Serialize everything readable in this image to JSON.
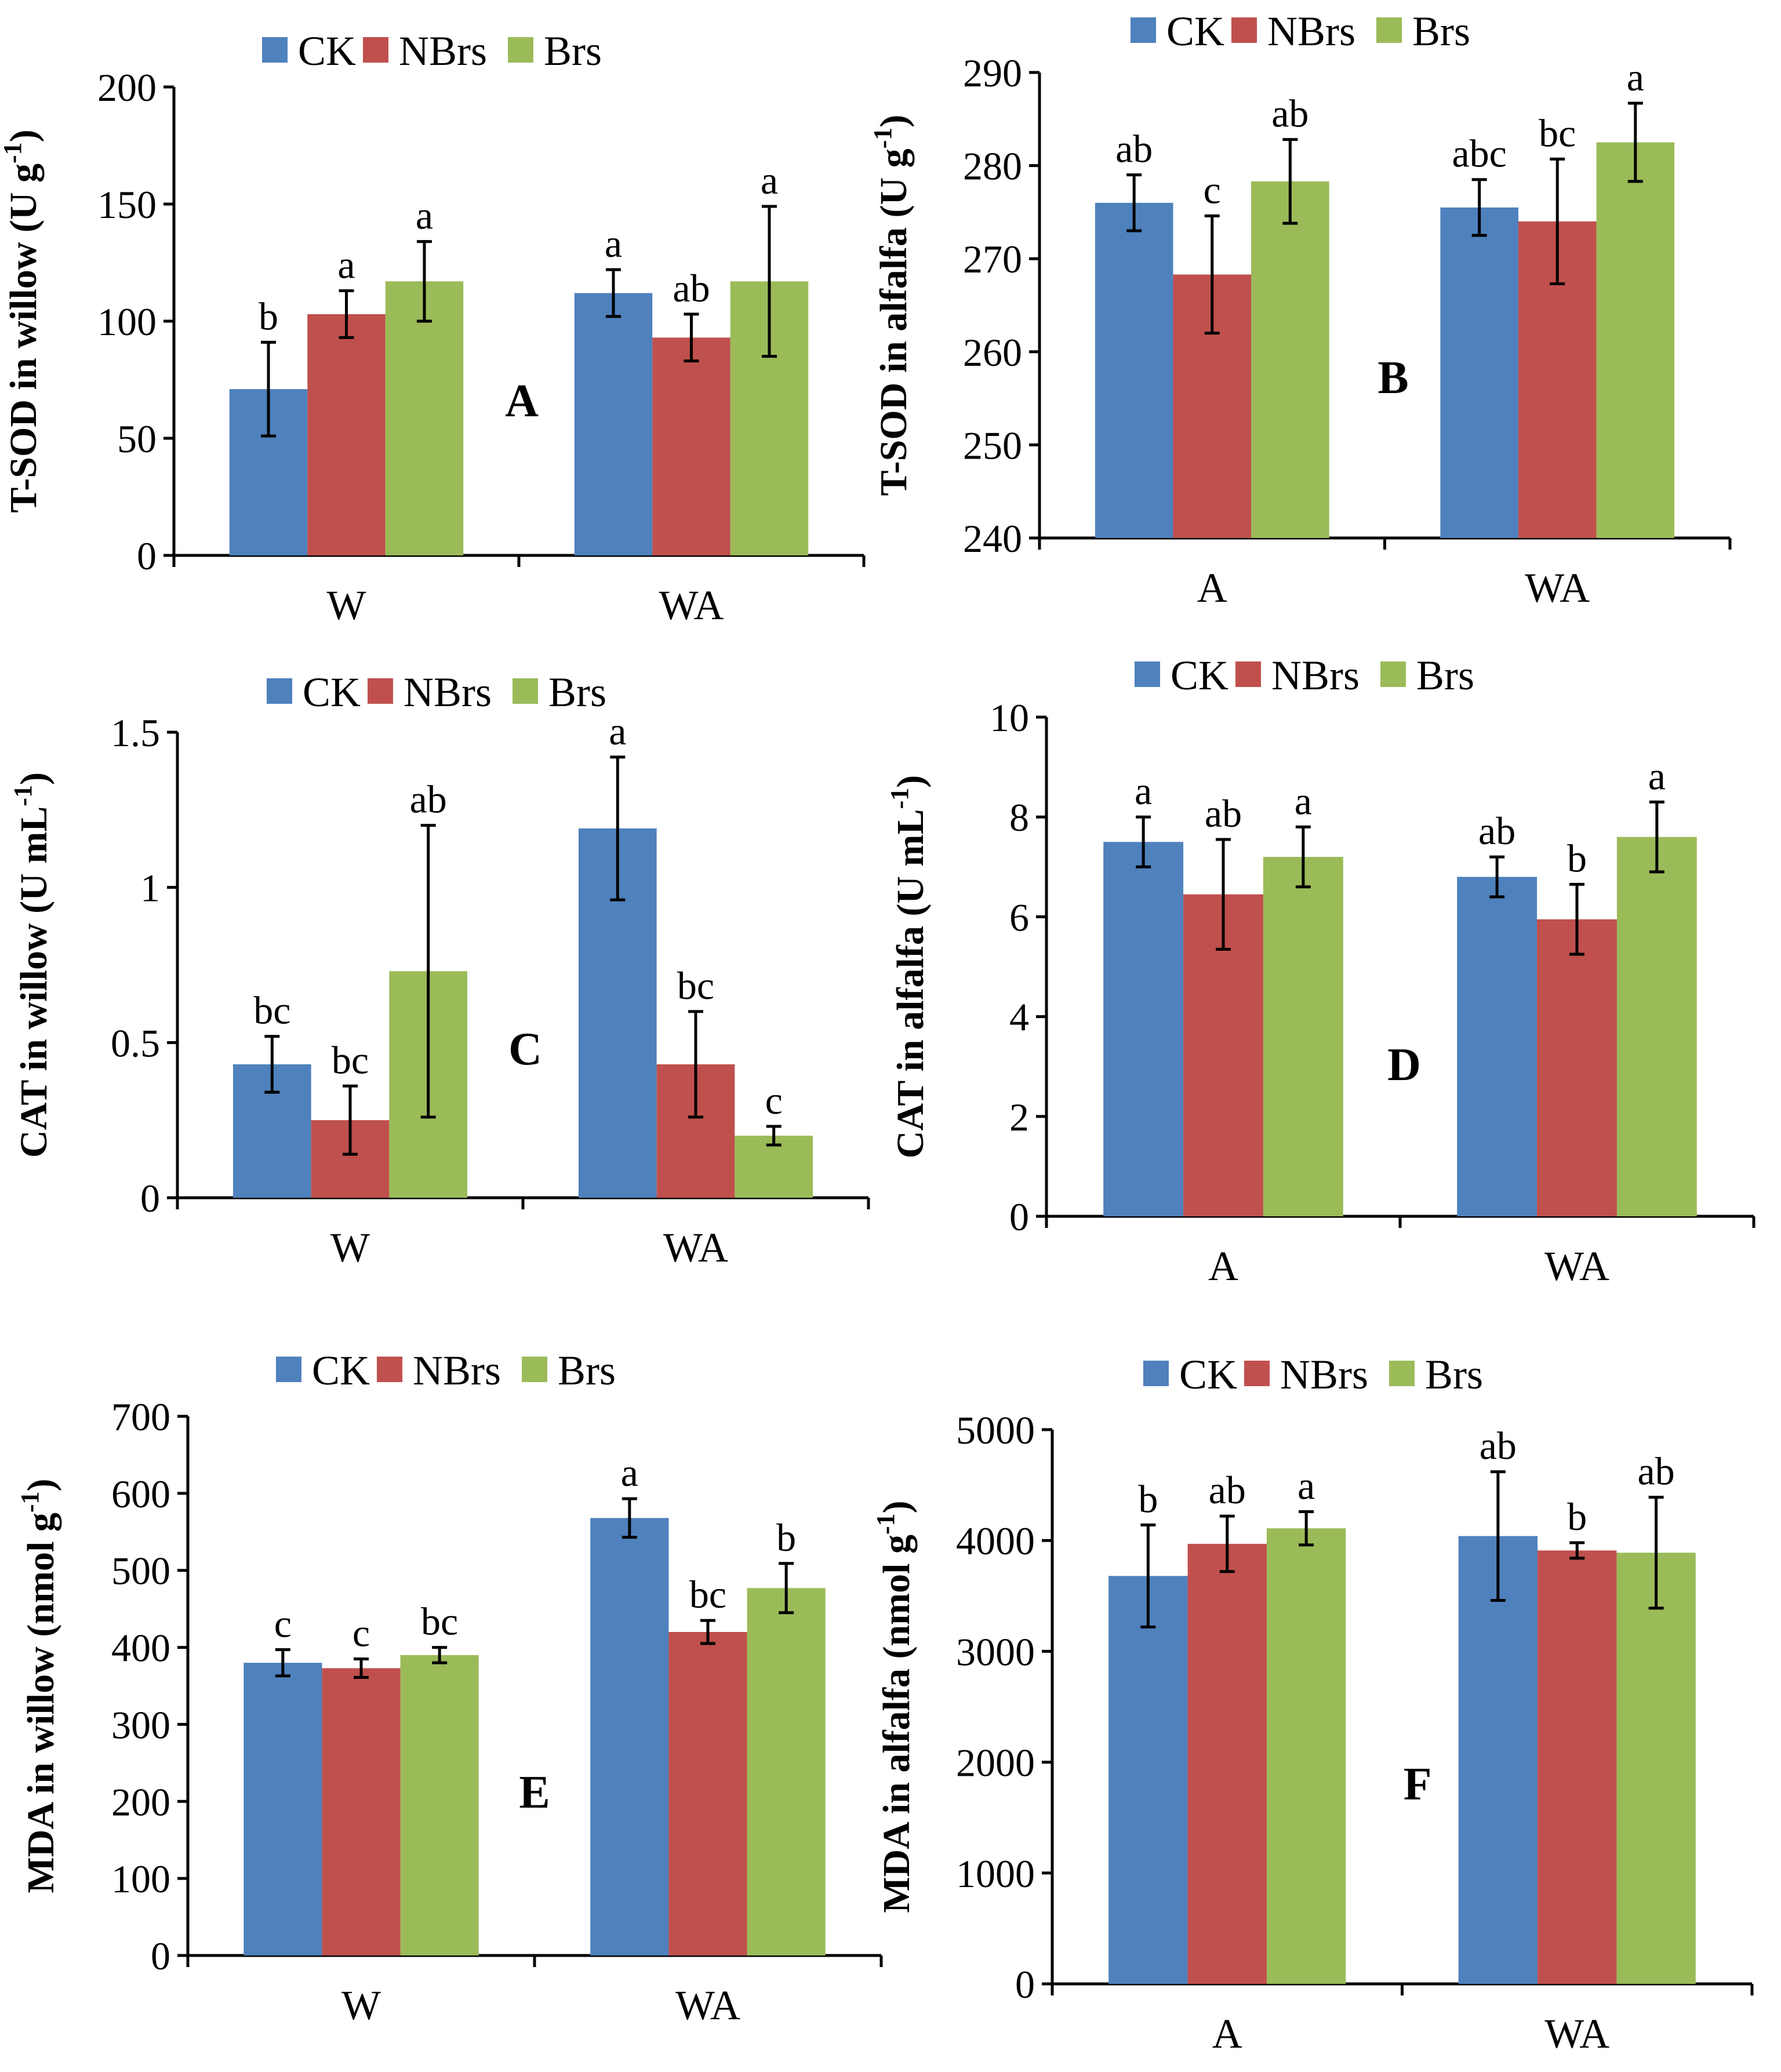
{
  "figure": {
    "legend": [
      "CK",
      "NBrs",
      "Brs"
    ],
    "colors": {
      "CK": "#4f81bd",
      "NBrs": "#c0504d",
      "Brs": "#9bbb59"
    }
  },
  "chart_data": [
    {
      "type": "bar",
      "panel": "A",
      "ylabel_main": "T-SOD in willow (U g",
      "ylabel_sup": "-1",
      "ylabel_end": ")",
      "ylim": [
        0,
        200
      ],
      "yticks": [
        0,
        50,
        100,
        150,
        200
      ],
      "categories": [
        "W",
        "WA"
      ],
      "series": [
        {
          "name": "CK",
          "values": [
            71,
            112
          ],
          "errors": [
            20,
            10
          ],
          "letters": [
            "b",
            "a"
          ]
        },
        {
          "name": "NBrs",
          "values": [
            103,
            93
          ],
          "errors": [
            10,
            10
          ],
          "letters": [
            "a",
            "ab"
          ]
        },
        {
          "name": "Brs",
          "values": [
            117,
            117
          ],
          "errors": [
            17,
            32
          ],
          "letters": [
            "a",
            "a"
          ]
        }
      ]
    },
    {
      "type": "bar",
      "panel": "B",
      "ylabel_main": "T-SOD in alfalfa (U g",
      "ylabel_sup": "-1",
      "ylabel_end": ")",
      "ylim": [
        240,
        290
      ],
      "yticks": [
        240,
        250,
        260,
        270,
        280,
        290
      ],
      "categories": [
        "A",
        "WA"
      ],
      "series": [
        {
          "name": "CK",
          "values": [
            276,
            275.5
          ],
          "errors": [
            3,
            3
          ],
          "letters": [
            "ab",
            "abc"
          ]
        },
        {
          "name": "NBrs",
          "values": [
            268.3,
            274
          ],
          "errors": [
            6.3,
            6.7
          ],
          "letters": [
            "c",
            "bc"
          ]
        },
        {
          "name": "Brs",
          "values": [
            278.3,
            282.5
          ],
          "errors": [
            4.5,
            4.2
          ],
          "letters": [
            "ab",
            "a"
          ]
        }
      ]
    },
    {
      "type": "bar",
      "panel": "C",
      "ylabel_main": "CAT in willow (U mL",
      "ylabel_sup": "-1",
      "ylabel_end": ")",
      "ylim": [
        0,
        1.5
      ],
      "yticks": [
        0,
        0.5,
        1,
        1.5
      ],
      "yticklabels": [
        "0",
        "0.5",
        "1",
        "1.5"
      ],
      "categories": [
        "W",
        "WA"
      ],
      "series": [
        {
          "name": "CK",
          "values": [
            0.43,
            1.19
          ],
          "errors": [
            0.09,
            0.23
          ],
          "letters": [
            "bc",
            "a"
          ]
        },
        {
          "name": "NBrs",
          "values": [
            0.25,
            0.43
          ],
          "errors": [
            0.11,
            0.17
          ],
          "letters": [
            "bc",
            "bc"
          ]
        },
        {
          "name": "Brs",
          "values": [
            0.73,
            0.2
          ],
          "errors": [
            0.47,
            0.03
          ],
          "letters": [
            "ab",
            "c"
          ]
        }
      ]
    },
    {
      "type": "bar",
      "panel": "D",
      "ylabel_main": "CAT in alfalfa (U mL",
      "ylabel_sup": "-1",
      "ylabel_end": ")",
      "ylim": [
        0,
        10
      ],
      "yticks": [
        0,
        2,
        4,
        6,
        8,
        10
      ],
      "categories": [
        "A",
        "WA"
      ],
      "series": [
        {
          "name": "CK",
          "values": [
            7.5,
            6.8
          ],
          "errors": [
            0.5,
            0.4
          ],
          "letters": [
            "a",
            "ab"
          ]
        },
        {
          "name": "NBrs",
          "values": [
            6.45,
            5.95
          ],
          "errors": [
            1.1,
            0.7
          ],
          "letters": [
            "ab",
            "b"
          ]
        },
        {
          "name": "Brs",
          "values": [
            7.2,
            7.6
          ],
          "errors": [
            0.6,
            0.7
          ],
          "letters": [
            "a",
            "a"
          ]
        }
      ]
    },
    {
      "type": "bar",
      "panel": "E",
      "ylabel_main": "MDA in willow (nmol g",
      "ylabel_sup": "-1",
      "ylabel_end": ")",
      "ylim": [
        0,
        700
      ],
      "yticks": [
        0,
        100,
        200,
        300,
        400,
        500,
        600,
        700
      ],
      "categories": [
        "W",
        "WA"
      ],
      "series": [
        {
          "name": "CK",
          "values": [
            380,
            568
          ],
          "errors": [
            17,
            25
          ],
          "letters": [
            "c",
            "a"
          ]
        },
        {
          "name": "NBrs",
          "values": [
            373,
            420
          ],
          "errors": [
            12,
            15
          ],
          "letters": [
            "c",
            "bc"
          ]
        },
        {
          "name": "Brs",
          "values": [
            390,
            477
          ],
          "errors": [
            10,
            32
          ],
          "letters": [
            "bc",
            "b"
          ]
        }
      ]
    },
    {
      "type": "bar",
      "panel": "F",
      "ylabel_main": "MDA in alfalfa (nmol g",
      "ylabel_sup": "-1",
      "ylabel_end": ")",
      "ylim": [
        0,
        5000
      ],
      "yticks": [
        0,
        1000,
        2000,
        3000,
        4000,
        5000
      ],
      "categories": [
        "A",
        "WA"
      ],
      "series": [
        {
          "name": "CK",
          "values": [
            3680,
            4040
          ],
          "errors": [
            460,
            580
          ],
          "letters": [
            "b",
            "ab"
          ]
        },
        {
          "name": "NBrs",
          "values": [
            3970,
            3910
          ],
          "errors": [
            250,
            70
          ],
          "letters": [
            "ab",
            "b"
          ]
        },
        {
          "name": "Brs",
          "values": [
            4110,
            3890
          ],
          "errors": [
            150,
            500
          ],
          "letters": [
            "a",
            "ab"
          ]
        }
      ]
    }
  ]
}
